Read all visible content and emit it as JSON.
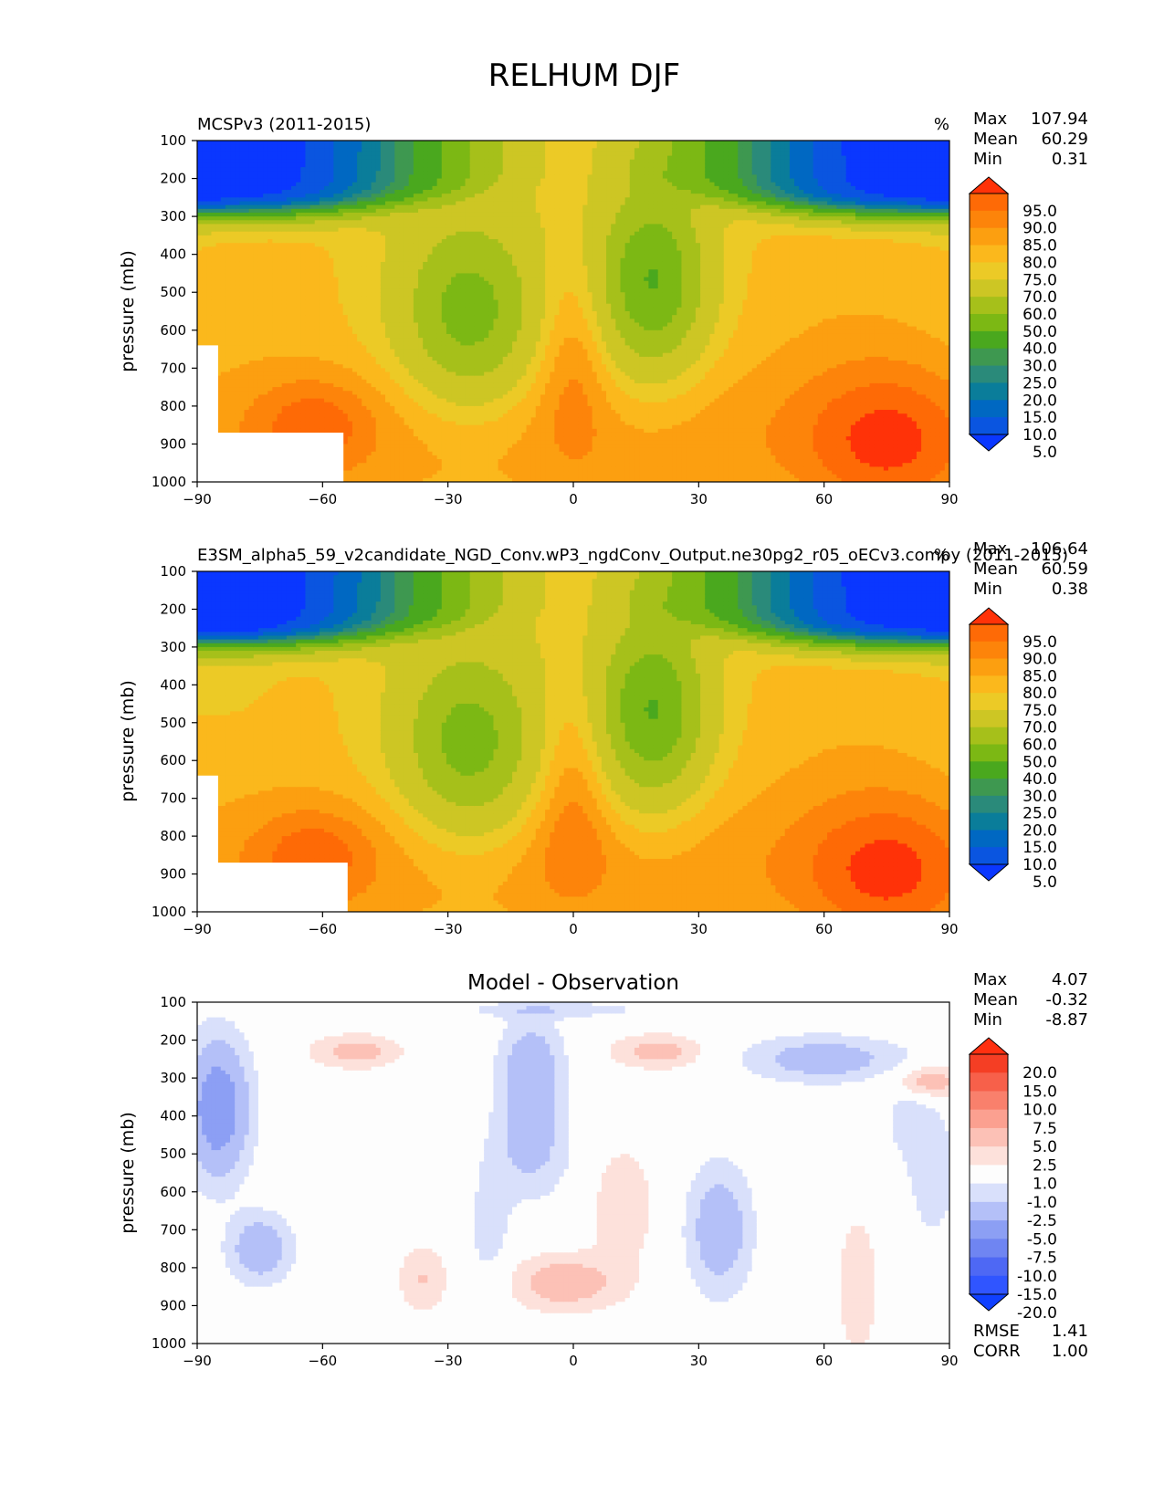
{
  "figure": {
    "title": "RELHUM DJF"
  },
  "colors": {
    "abs_levels": [
      5,
      10,
      15,
      20,
      25,
      30,
      40,
      50,
      60,
      70,
      75,
      80,
      85,
      90,
      95
    ],
    "abs_colors": [
      "#0a37ff",
      "#0a55e0",
      "#0068c2",
      "#0a7d9a",
      "#2a8a7a",
      "#3e9850",
      "#4aa81e",
      "#7cb814",
      "#a6c01a",
      "#cdc624",
      "#ecca26",
      "#fbb81c",
      "#fc9f10",
      "#fd840a",
      "#fe6a06",
      "#ff3208"
    ],
    "diff_levels": [
      -20,
      -15,
      -10,
      -7.5,
      -5,
      -2.5,
      -1,
      1,
      2.5,
      5,
      7.5,
      10,
      15,
      20
    ],
    "diff_colors": [
      "#1040ff",
      "#3055ff",
      "#4e68f4",
      "#6f85f2",
      "#8c9ff4",
      "#b4c0f8",
      "#d9e0fb",
      "#fdfdfd",
      "#fde1db",
      "#fcc1b6",
      "#fba090",
      "#f9806c",
      "#f7604a",
      "#f53e24",
      "#ff3010"
    ]
  },
  "chart_data": [
    {
      "type": "contour",
      "name": "obs",
      "title": "MCSPv3 (2011-2015)",
      "units": "%",
      "ylabel": "pressure (mb)",
      "x_ticks": [
        -90,
        -60,
        -30,
        0,
        30,
        60,
        90
      ],
      "y_ticks": [
        100,
        200,
        300,
        400,
        500,
        600,
        700,
        800,
        900,
        1000
      ],
      "xlim": [
        -90,
        90
      ],
      "ylim": [
        100,
        1000
      ],
      "stats": [
        {
          "label": "Max",
          "value": "107.94"
        },
        {
          "label": "Mean",
          "value": "60.29"
        },
        {
          "label": "Min",
          "value": "0.31"
        }
      ],
      "colorbar_labels": [
        "95.0",
        "90.0",
        "85.0",
        "80.0",
        "75.0",
        "70.0",
        "60.0",
        "50.0",
        "40.0",
        "30.0",
        "25.0",
        "20.0",
        "15.0",
        "10.0",
        "5.0"
      ],
      "missing_region": [
        [
          -90,
          640
        ],
        [
          -85,
          640
        ],
        [
          -85,
          870
        ],
        [
          -55,
          870
        ],
        [
          -55,
          1000
        ],
        [
          -90,
          1000
        ]
      ]
    },
    {
      "type": "contour",
      "name": "model",
      "title": "E3SM_alpha5_59_v2candidate_NGD_Conv.wP3_ngdConv_Output.ne30pg2_r05_oECv3.compy (2011-2015)",
      "units": "%",
      "ylabel": "pressure (mb)",
      "x_ticks": [
        -90,
        -60,
        -30,
        0,
        30,
        60,
        90
      ],
      "y_ticks": [
        100,
        200,
        300,
        400,
        500,
        600,
        700,
        800,
        900,
        1000
      ],
      "xlim": [
        -90,
        90
      ],
      "ylim": [
        100,
        1000
      ],
      "stats": [
        {
          "label": "Max",
          "value": "106.64"
        },
        {
          "label": "Mean",
          "value": "60.59"
        },
        {
          "label": "Min",
          "value": "0.38"
        }
      ],
      "colorbar_labels": [
        "95.0",
        "90.0",
        "85.0",
        "80.0",
        "75.0",
        "70.0",
        "60.0",
        "50.0",
        "40.0",
        "30.0",
        "25.0",
        "20.0",
        "15.0",
        "10.0",
        "5.0"
      ],
      "missing_region": [
        [
          -90,
          640
        ],
        [
          -85,
          640
        ],
        [
          -85,
          870
        ],
        [
          -54,
          870
        ],
        [
          -54,
          1000
        ],
        [
          -90,
          1000
        ]
      ]
    },
    {
      "type": "contour",
      "name": "diff",
      "title": "Model - Observation",
      "units": "",
      "ylabel": "pressure (mb)",
      "x_ticks": [
        -90,
        -60,
        -30,
        0,
        30,
        60,
        90
      ],
      "y_ticks": [
        100,
        200,
        300,
        400,
        500,
        600,
        700,
        800,
        900,
        1000
      ],
      "xlim": [
        -90,
        90
      ],
      "ylim": [
        100,
        1000
      ],
      "stats": [
        {
          "label": "Max",
          "value": "4.07"
        },
        {
          "label": "Mean",
          "value": "-0.32"
        },
        {
          "label": "Min",
          "value": "-8.87"
        }
      ],
      "colorbar_labels": [
        "20.0",
        "15.0",
        "10.0",
        "7.5",
        "5.0",
        "2.5",
        "1.0",
        "-1.0",
        "-2.5",
        "-5.0",
        "-7.5",
        "-10.0",
        "-15.0",
        "-20.0"
      ],
      "metrics": [
        {
          "label": "RMSE",
          "value": "1.41"
        },
        {
          "label": "CORR",
          "value": "1.00"
        }
      ]
    }
  ]
}
